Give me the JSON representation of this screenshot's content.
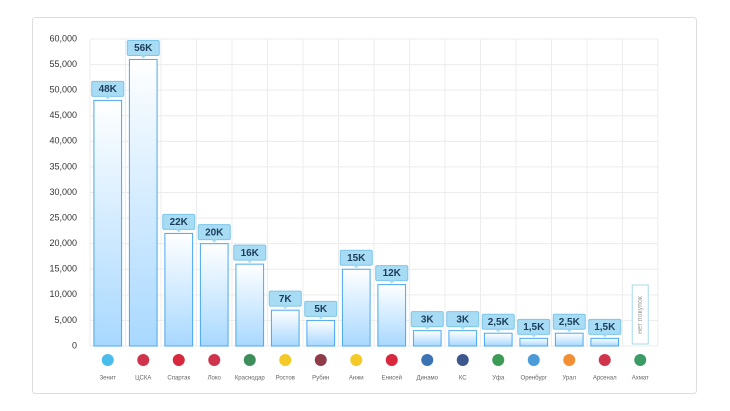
{
  "chart_data": {
    "type": "bar",
    "categories": [
      "Зенит",
      "ЦСКА",
      "Спартак",
      "Локо",
      "Краснодар",
      "Ростов",
      "Рубин",
      "Анжи",
      "Енисей",
      "Динамо",
      "КС",
      "Уфа",
      "Оренбург",
      "Урал",
      "Арсенал",
      "Ахмат"
    ],
    "values": [
      48000,
      56000,
      22000,
      20000,
      16000,
      7000,
      5000,
      15000,
      12000,
      3000,
      3000,
      2500,
      1500,
      2500,
      1500,
      0
    ],
    "value_labels": [
      "48K",
      "56K",
      "22K",
      "20K",
      "16K",
      "7K",
      "5K",
      "15K",
      "12K",
      "3K",
      "3K",
      "2,5K",
      "1,5K",
      "2,5K",
      "1,5K",
      "нет покупок"
    ],
    "color": "#4aa8f0",
    "ylim": [
      0,
      60000
    ],
    "yticks": [
      0,
      {
        "value": 5000,
        "label": "5,000"
      },
      {
        "value": 10000,
        "label": "10,000"
      },
      {
        "value": 15000,
        "label": "15,000"
      },
      {
        "value": 20000,
        "label": "20,000"
      },
      {
        "value": 25000,
        "label": "25,000"
      },
      {
        "value": 30000,
        "label": "30,000"
      },
      {
        "value": 35000,
        "label": "35,000"
      },
      {
        "value": 40000,
        "label": "40,000"
      },
      {
        "value": 45000,
        "label": "45,000"
      },
      {
        "value": 50000,
        "label": "50,000"
      },
      {
        "value": 55000,
        "label": "55,000"
      },
      {
        "value": 60000,
        "label": "60,000"
      }
    ],
    "grid": true
  }
}
